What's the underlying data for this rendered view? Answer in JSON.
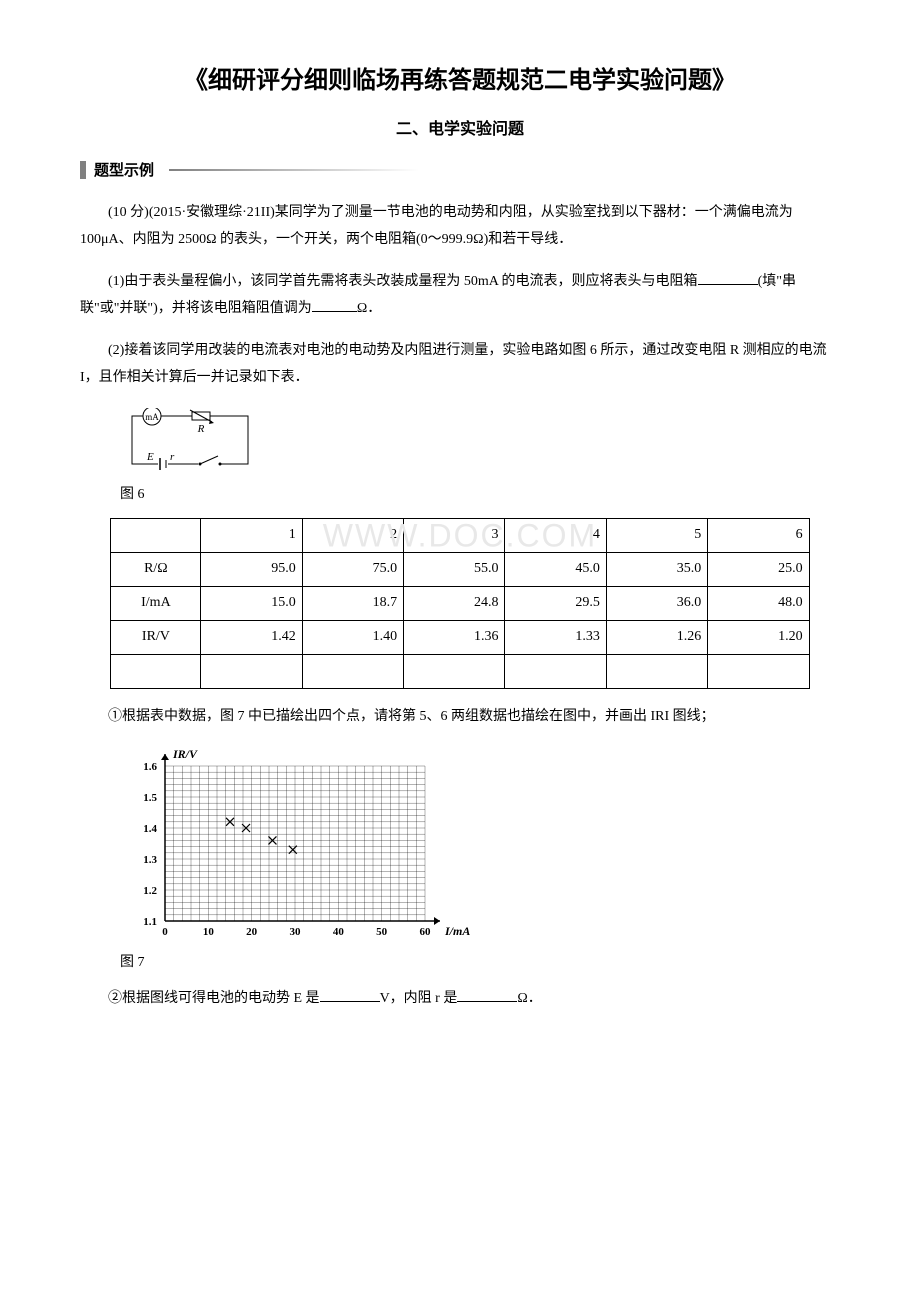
{
  "title": "《细研评分细则临场再练答题规范二电学实验问题》",
  "subtitle": "二、电学实验问题",
  "section_header": "题型示例",
  "intro": "(10 分)(2015·安徽理综·21II)某同学为了测量一节电池的电动势和内阻，从实验室找到以下器材：一个满偏电流为 100μA、内阻为 2500Ω 的表头，一个开关，两个电阻箱(0～999.9Ω)和若干导线．",
  "q1_prefix": "(1)由于表头量程偏小，该同学首先需将表头改装成量程为 50mA 的电流表，则应将表头与电阻箱",
  "q1_mid": "(填\"串联\"或\"并联\")，并将该电阻箱阻值调为",
  "q1_suffix": "Ω．",
  "q2": "(2)接着该同学用改装的电流表对电池的电动势及内阻进行测量，实验电路如图 6 所示，通过改变电阻 R 测相应的电流 I，且作相关计算后一并记录如下表．",
  "fig6_label": "图 6",
  "fig7_label": "图 7",
  "sub1": "①根据表中数据，图 7 中已描绘出四个点，请将第 5、6 两组数据也描绘在图中，并画出 IRI 图线；",
  "sub2_prefix": "②根据图线可得电池的电动势 E 是",
  "sub2_mid": "V，内阻 r 是",
  "sub2_suffix": "Ω．",
  "watermark_text": "WWW.DOC.COM",
  "table": {
    "headers": [
      "",
      "1",
      "2",
      "3",
      "4",
      "5",
      "6"
    ],
    "rows": [
      {
        "label": "R/Ω",
        "values": [
          "95.0",
          "75.0",
          "55.0",
          "45.0",
          "35.0",
          "25.0"
        ]
      },
      {
        "label": "I/mA",
        "values": [
          "15.0",
          "18.7",
          "24.8",
          "29.5",
          "36.0",
          "48.0"
        ]
      },
      {
        "label": "IR/V",
        "values": [
          "1.42",
          "1.40",
          "1.36",
          "1.33",
          "1.26",
          "1.20"
        ]
      },
      {
        "label": "",
        "values": [
          "",
          "",
          "",
          "",
          "",
          ""
        ]
      }
    ],
    "border_color": "#000000",
    "background_color": "#ffffff"
  },
  "circuit": {
    "stroke_color": "#000000",
    "labels": {
      "ma": "mA",
      "r_box": "R",
      "emf": "E",
      "r_int": "r"
    }
  },
  "graph": {
    "ylabel": "IR/V",
    "xlabel": "I/mA",
    "xlim": [
      0,
      60
    ],
    "ylim": [
      1.1,
      1.6
    ],
    "xtick_step": 10,
    "ytick_step": 0.1,
    "x_ticks": [
      "0",
      "10",
      "20",
      "30",
      "40",
      "50",
      "60"
    ],
    "y_ticks": [
      "1.1",
      "1.2",
      "1.3",
      "1.4",
      "1.5",
      "1.6"
    ],
    "minor_grid_divisions": 5,
    "axis_color": "#000000",
    "grid_color": "#000000",
    "grid_width": 0.3,
    "background_color": "#ffffff",
    "points": [
      {
        "x": 15.0,
        "y": 1.42
      },
      {
        "x": 18.7,
        "y": 1.4
      },
      {
        "x": 24.8,
        "y": 1.36
      },
      {
        "x": 29.5,
        "y": 1.33
      }
    ],
    "marker": "×",
    "marker_size": 8,
    "marker_color": "#000000"
  }
}
